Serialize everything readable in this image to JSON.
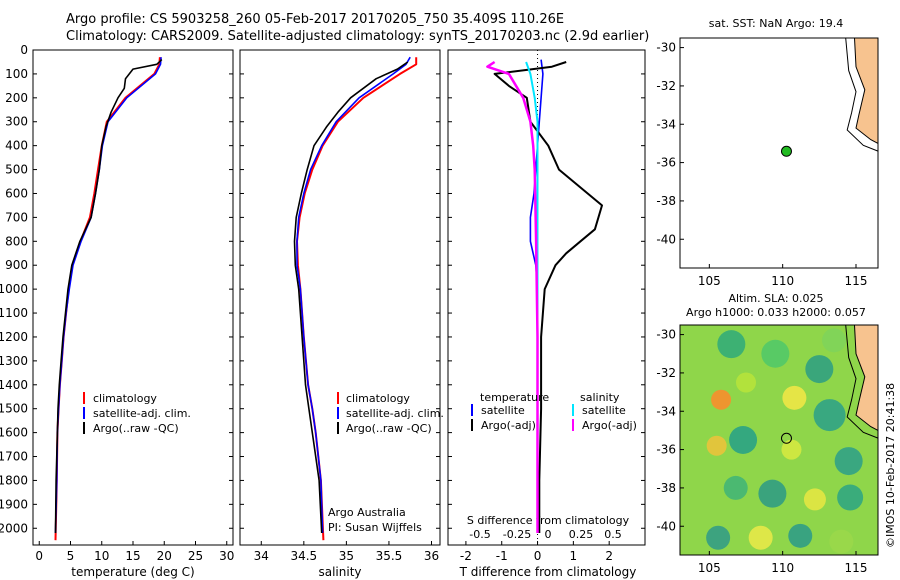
{
  "title": {
    "line1": "Argo profile: CS 5903258_260 05-Feb-2017 20170205_750 35.409S 110.26E",
    "line2": "Climatology: CARS2009. Satellite-adjusted climatology: synTS_20170203.nc (2.9d earlier)"
  },
  "colors": {
    "climatology": "#ff0000",
    "satellite": "#0000ff",
    "argo": "#000000",
    "sat_salinity": "#00e5ff",
    "argo_salinity": "#ff00ff",
    "land": "#f7c38f",
    "float_marker": "#22bb22"
  },
  "depth_axis": {
    "ticks": [
      "0",
      "100",
      "200",
      "300",
      "400",
      "500",
      "600",
      "700",
      "800",
      "900",
      "1000",
      "1100",
      "1200",
      "1300",
      "1400",
      "1500",
      "1600",
      "1700",
      "1800",
      "1900",
      "2000"
    ]
  },
  "chart_data": [
    {
      "id": "temperature",
      "type": "line",
      "xlabel": "temperature (deg C)",
      "xlim": [
        -1,
        31
      ],
      "ylim": [
        2070,
        0
      ],
      "xticks": [
        "0",
        "5",
        "10",
        "15",
        "20",
        "25",
        "30"
      ],
      "legend": [
        "climatology",
        "satellite-adj. clim.",
        "Argo(..raw -QC)"
      ],
      "series": [
        {
          "name": "climatology",
          "x": [
            19.3,
            19.2,
            18.4,
            13.8,
            10.8,
            10.0,
            9.4,
            8.8,
            8.1,
            6.6,
            5.3,
            4.7,
            4.3,
            3.9,
            3.6,
            3.3,
            3.1,
            2.9,
            2.8,
            2.6
          ],
          "y": [
            30,
            60,
            100,
            200,
            300,
            400,
            500,
            600,
            700,
            800,
            900,
            1000,
            1100,
            1200,
            1300,
            1400,
            1500,
            1600,
            1800,
            2050
          ]
        },
        {
          "name": "satellite-adj. clim.",
          "x": [
            19.5,
            19.4,
            18.6,
            14.0,
            11.0,
            10.1,
            9.6,
            9.0,
            8.3,
            6.7,
            5.4,
            4.8,
            4.3,
            3.9,
            3.6,
            3.3,
            3.1,
            2.9,
            2.8,
            2.6
          ],
          "y": [
            30,
            60,
            100,
            200,
            300,
            400,
            500,
            600,
            700,
            800,
            900,
            1000,
            1100,
            1200,
            1300,
            1400,
            1500,
            1600,
            1800,
            2020
          ]
        },
        {
          "name": "Argo(..raw -QC)",
          "x": [
            19.6,
            18.8,
            15.0,
            13.8,
            13.6,
            12.6,
            11.5,
            10.7,
            10.0,
            9.6,
            9.0,
            8.3,
            6.5,
            5.2,
            4.6,
            4.2,
            3.8,
            3.5,
            3.2,
            3.0,
            2.9,
            2.7,
            2.6
          ],
          "y": [
            40,
            60,
            80,
            120,
            160,
            200,
            260,
            320,
            400,
            500,
            600,
            700,
            800,
            900,
            1000,
            1100,
            1200,
            1300,
            1400,
            1500,
            1600,
            1800,
            2020
          ]
        }
      ]
    },
    {
      "id": "salinity",
      "type": "line",
      "xlabel": "salinity",
      "xlim": [
        33.75,
        36.1
      ],
      "ylim": [
        2070,
        0
      ],
      "xticks": [
        "34",
        "34.5",
        "35",
        "35.5",
        "36"
      ],
      "legend": [
        "climatology",
        "satellite-adj. clim.",
        "Argo(..raw -QC)"
      ],
      "series": [
        {
          "name": "climatology",
          "x": [
            35.82,
            35.82,
            35.63,
            35.2,
            34.9,
            34.72,
            34.6,
            34.51,
            34.45,
            34.42,
            34.43,
            34.46,
            34.5,
            34.55,
            34.6,
            34.64,
            34.67,
            34.7,
            34.73
          ],
          "y": [
            30,
            60,
            100,
            200,
            300,
            400,
            500,
            600,
            700,
            800,
            900,
            1000,
            1200,
            1400,
            1500,
            1600,
            1700,
            1800,
            2050
          ]
        },
        {
          "name": "satellite-adj. clim.",
          "x": [
            35.75,
            35.7,
            35.55,
            35.15,
            34.88,
            34.71,
            34.58,
            34.5,
            34.44,
            34.42,
            34.42,
            34.46,
            34.5,
            34.55,
            34.6,
            34.64,
            34.67,
            34.7,
            34.72
          ],
          "y": [
            30,
            60,
            100,
            200,
            300,
            400,
            500,
            600,
            700,
            800,
            900,
            1000,
            1200,
            1400,
            1500,
            1600,
            1700,
            1800,
            2020
          ]
        },
        {
          "name": "Argo(..raw -QC)",
          "x": [
            35.72,
            35.6,
            35.35,
            35.05,
            34.9,
            34.77,
            34.62,
            34.54,
            34.47,
            34.41,
            34.39,
            34.4,
            34.44,
            34.48,
            34.52,
            34.56,
            34.6,
            34.64,
            34.68,
            34.71
          ],
          "y": [
            50,
            80,
            120,
            200,
            260,
            320,
            400,
            500,
            600,
            700,
            800,
            900,
            1000,
            1200,
            1400,
            1500,
            1600,
            1700,
            1800,
            2020
          ]
        }
      ],
      "annotation": [
        "Argo Australia",
        "PI: Susan Wijffels"
      ]
    },
    {
      "id": "difference",
      "type": "line",
      "xlabel": "T difference from climatology",
      "xlim": [
        -2.5,
        3
      ],
      "ylim": [
        2070,
        0
      ],
      "xticks": [
        "-2",
        "-1",
        "0",
        "1",
        "2"
      ],
      "top_label": "S difference from climatology",
      "top_ticks": [
        "-0.5",
        "-0.25",
        "0",
        "0.25",
        "0.5"
      ],
      "legend_headers": [
        "temperature",
        "salinity"
      ],
      "legend": [
        "satellite",
        "Argo(-adj)",
        "satellite",
        "Argo(-adj)"
      ],
      "series": [
        {
          "name": "T satellite",
          "x": [
            0.1,
            0.15,
            0.1,
            0.05,
            0.0,
            -0.05,
            -0.1,
            -0.2,
            -0.2,
            -0.05,
            0.0,
            0.0,
            0.0,
            0.0
          ],
          "y": [
            40,
            100,
            200,
            300,
            400,
            500,
            600,
            700,
            800,
            900,
            1000,
            1200,
            1600,
            2020
          ]
        },
        {
          "name": "T Argo(-adj)",
          "x": [
            0.8,
            0.4,
            -1.2,
            -0.8,
            -0.3,
            -0.2,
            0.3,
            0.6,
            1.4,
            1.8,
            1.6,
            1.2,
            0.8,
            0.5,
            0.2,
            0.1,
            0.1,
            0.05,
            0.05
          ],
          "y": [
            50,
            70,
            100,
            150,
            200,
            300,
            400,
            500,
            600,
            650,
            750,
            800,
            850,
            900,
            1000,
            1200,
            1500,
            1800,
            2020
          ]
        },
        {
          "name": "S satellite",
          "x": [
            -0.08,
            -0.05,
            -0.02,
            0.0,
            0.0,
            0.0,
            0.0,
            0.0,
            0.0,
            0.0
          ],
          "y": [
            50,
            100,
            200,
            300,
            400,
            600,
            800,
            1000,
            1500,
            2020
          ]
        },
        {
          "name": "S Argo(-adj)",
          "x": [
            -0.3,
            -0.35,
            -0.2,
            -0.1,
            -0.05,
            -0.03,
            -0.02,
            -0.01,
            0.0,
            0.0,
            0.0
          ],
          "y": [
            50,
            70,
            100,
            200,
            300,
            400,
            500,
            800,
            1200,
            1800,
            2020
          ]
        }
      ]
    },
    {
      "id": "sst_map",
      "type": "scatter",
      "title": "sat. SST: NaN Argo: 19.4",
      "xlim": [
        103,
        116.5
      ],
      "ylim": [
        -41.5,
        -29.5
      ],
      "xticks": [
        "105",
        "110",
        "115"
      ],
      "yticks": [
        "-30",
        "-32",
        "-34",
        "-36",
        "-38",
        "-40"
      ],
      "points": [
        {
          "lon": 110.26,
          "lat": -35.41
        }
      ]
    },
    {
      "id": "sla_map",
      "type": "heatmap",
      "title": [
        "Altim. SLA: 0.025",
        "Argo h1000: 0.033 h2000: 0.057"
      ],
      "xlim": [
        103,
        116.5
      ],
      "ylim": [
        -41.5,
        -29.5
      ],
      "xticks": [
        "105",
        "110",
        "115"
      ],
      "yticks": [
        "-30",
        "-32",
        "-34",
        "-36",
        "-38",
        "-40"
      ],
      "points": [
        {
          "lon": 110.26,
          "lat": -35.41
        }
      ]
    }
  ],
  "credit": "©IMOS 10-Feb-2017 20:41:38"
}
